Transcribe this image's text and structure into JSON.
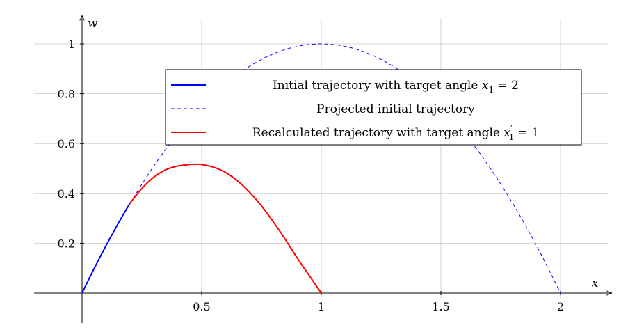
{
  "chart_data": {
    "type": "line",
    "xlabel": "x",
    "ylabel": "w",
    "xlim": [
      -0.2,
      2.2
    ],
    "ylim": [
      -0.02,
      1.1
    ],
    "grid": true,
    "x_ticks": [
      {
        "value": 0.5,
        "label": "0.5"
      },
      {
        "value": 1,
        "label": "1"
      },
      {
        "value": 1.5,
        "label": "1.5"
      },
      {
        "value": 2,
        "label": "2"
      }
    ],
    "y_ticks": [
      {
        "value": 0.2,
        "label": "0.2"
      },
      {
        "value": 0.4,
        "label": "0.4"
      },
      {
        "value": 0.6,
        "label": "0.6"
      },
      {
        "value": 0.8,
        "label": "0.8"
      },
      {
        "value": 1,
        "label": "1"
      }
    ],
    "legend_position": "top-right",
    "series": [
      {
        "key": "initial",
        "name": "Initial trajectory with target angle x1 = 2",
        "legend_text": "Initial trajectory with target angle ",
        "legend_math": "x",
        "legend_sub": "1",
        "legend_rest": " = 2",
        "color": "#0000ff",
        "style": "solid",
        "x": [
          0,
          0.025,
          0.05,
          0.075,
          0.1,
          0.125,
          0.15,
          0.175,
          0.2
        ],
        "y": [
          0,
          0.0494,
          0.0975,
          0.1444,
          0.19,
          0.2344,
          0.2775,
          0.3194,
          0.36
        ]
      },
      {
        "key": "projected",
        "name": "Projected initial trajectory",
        "legend_text": "Projected initial trajectory",
        "color": "#0000ff",
        "style": "dashed",
        "x": [
          0.2,
          0.3,
          0.4,
          0.5,
          0.6,
          0.7,
          0.8,
          0.9,
          1.0,
          1.1,
          1.2,
          1.3,
          1.4,
          1.5,
          1.6,
          1.7,
          1.8,
          1.9,
          2.0
        ],
        "y": [
          0.36,
          0.51,
          0.64,
          0.75,
          0.84,
          0.91,
          0.96,
          0.99,
          1.0,
          0.99,
          0.96,
          0.91,
          0.84,
          0.75,
          0.64,
          0.51,
          0.36,
          0.19,
          0.0
        ]
      },
      {
        "key": "recalculated",
        "name": "Recalculated trajectory with target angle x1' = 1",
        "legend_text": "Recalculated trajectory with target angle ",
        "legend_math": "x",
        "legend_sub": "1",
        "legend_prime": "′",
        "legend_rest": " = 1",
        "color": "#ff0000",
        "style": "solid",
        "x": [
          0.2,
          0.25,
          0.3,
          0.35,
          0.4,
          0.45,
          0.48,
          0.5,
          0.55,
          0.6,
          0.65,
          0.7,
          0.75,
          0.8,
          0.85,
          0.9,
          0.95,
          1.0
        ],
        "y": [
          0.36,
          0.42,
          0.465,
          0.495,
          0.51,
          0.516,
          0.517,
          0.516,
          0.505,
          0.484,
          0.45,
          0.405,
          0.35,
          0.285,
          0.215,
          0.14,
          0.07,
          0.0
        ]
      }
    ]
  }
}
